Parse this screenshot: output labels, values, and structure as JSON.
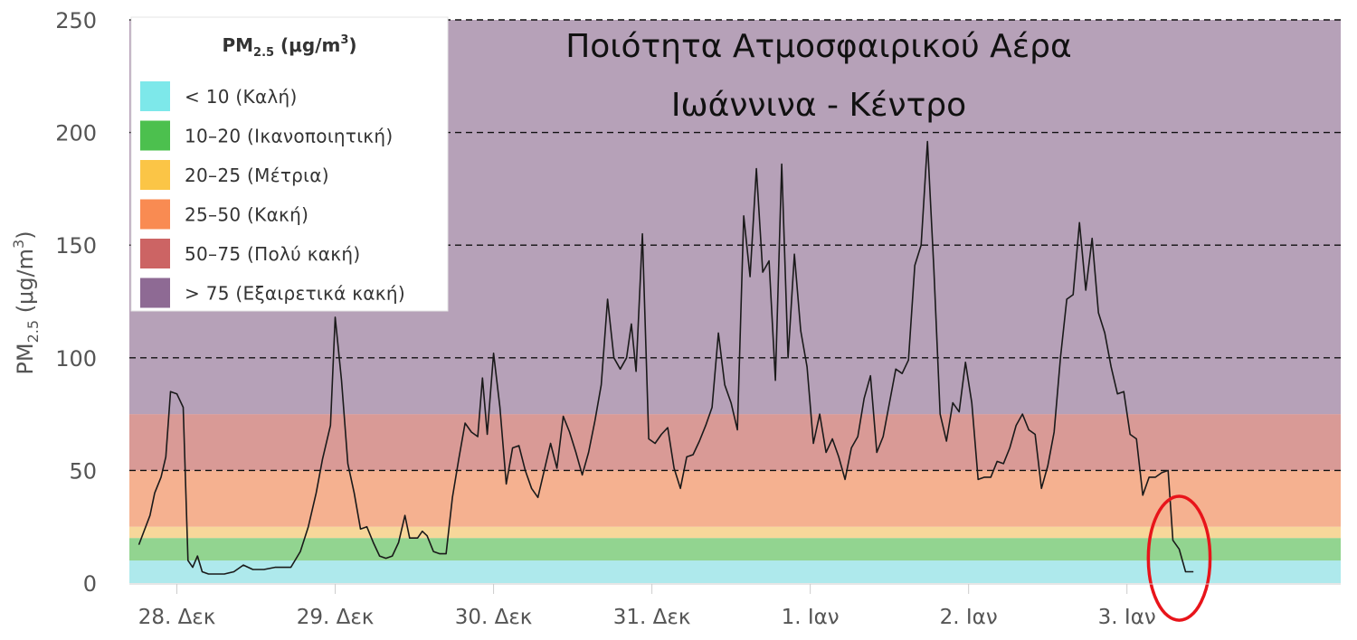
{
  "chart_data": {
    "type": "line",
    "title_lines": [
      "Ποιότητα Ατμοσφαιρικού Αέρα",
      "Ιωάννινα - Κέντρο"
    ],
    "ylabel_base": "PM",
    "ylabel_sub": "2.5",
    "ylabel_unit_open": " (μg/m",
    "ylabel_unit_sup": "3",
    "ylabel_unit_close": ")",
    "ylim": [
      0,
      250
    ],
    "yticks": [
      "0",
      "50",
      "100",
      "150",
      "200",
      "250"
    ],
    "ytick_values": [
      0,
      50,
      100,
      150,
      200,
      250
    ],
    "gridlines_at": [
      50,
      100,
      150,
      200,
      250
    ],
    "xlim": [
      -0.3,
      7.35
    ],
    "xticks": [
      {
        "label": "28. Δεκ",
        "x": 0
      },
      {
        "label": "29. Δεκ",
        "x": 1
      },
      {
        "label": "30. Δεκ",
        "x": 2
      },
      {
        "label": "31. Δεκ",
        "x": 3
      },
      {
        "label": "1. Ιαν",
        "x": 4
      },
      {
        "label": "2. Ιαν",
        "x": 5
      },
      {
        "label": "3. Ιαν",
        "x": 6
      }
    ],
    "bands": [
      {
        "from": 0,
        "to": 10,
        "color": "#aee9ec"
      },
      {
        "from": 10,
        "to": 20,
        "color": "#92d490"
      },
      {
        "from": 20,
        "to": 25,
        "color": "#f7d79a"
      },
      {
        "from": 25,
        "to": 50,
        "color": "#f5b190"
      },
      {
        "from": 50,
        "to": 75,
        "color": "#d99a96"
      },
      {
        "from": 75,
        "to": 250,
        "color": "#b6a1b8"
      }
    ],
    "legend": {
      "title_base": "PM",
      "title_sub": "2.5",
      "title_unit_open": " (μg/m",
      "title_unit_sup": "3",
      "title_unit_close": ")",
      "items": [
        {
          "label": "< 10 (Καλή)",
          "color": "#7de8ea"
        },
        {
          "label": "10–20 (Ικανοποιητική)",
          "color": "#4cc04e"
        },
        {
          "label": "20–25 (Μέτρια)",
          "color": "#fbc546"
        },
        {
          "label": "25–50 (Κακή)",
          "color": "#f98b52"
        },
        {
          "label": "50–75 (Πολύ κακή)",
          "color": "#cc6464"
        },
        {
          "label": "> 75 (Εξαιρετικά κακή)",
          "color": "#8e6a94"
        }
      ]
    },
    "series": [
      {
        "color": "#1a1a1a",
        "points": [
          [
            -0.24,
            17
          ],
          [
            -0.17,
            30
          ],
          [
            -0.14,
            40
          ],
          [
            -0.1,
            47
          ],
          [
            -0.07,
            56
          ],
          [
            -0.04,
            85
          ],
          [
            0.0,
            84
          ],
          [
            0.04,
            78
          ],
          [
            0.07,
            10
          ],
          [
            0.1,
            7
          ],
          [
            0.13,
            12
          ],
          [
            0.16,
            5
          ],
          [
            0.2,
            4
          ],
          [
            0.3,
            4
          ],
          [
            0.36,
            5
          ],
          [
            0.42,
            8
          ],
          [
            0.48,
            6
          ],
          [
            0.55,
            6
          ],
          [
            0.62,
            7
          ],
          [
            0.72,
            7
          ],
          [
            0.78,
            14
          ],
          [
            0.83,
            25
          ],
          [
            0.88,
            40
          ],
          [
            0.92,
            55
          ],
          [
            0.97,
            70
          ],
          [
            1.0,
            118
          ],
          [
            1.04,
            90
          ],
          [
            1.08,
            53
          ],
          [
            1.12,
            40
          ],
          [
            1.16,
            24
          ],
          [
            1.2,
            25
          ],
          [
            1.24,
            18
          ],
          [
            1.28,
            12
          ],
          [
            1.32,
            11
          ],
          [
            1.36,
            12
          ],
          [
            1.4,
            18
          ],
          [
            1.44,
            30
          ],
          [
            1.47,
            20
          ],
          [
            1.52,
            20
          ],
          [
            1.55,
            23
          ],
          [
            1.58,
            21
          ],
          [
            1.62,
            14
          ],
          [
            1.66,
            13
          ],
          [
            1.7,
            13
          ],
          [
            1.74,
            38
          ],
          [
            1.78,
            55
          ],
          [
            1.82,
            71
          ],
          [
            1.86,
            67
          ],
          [
            1.9,
            65
          ],
          [
            1.93,
            91
          ],
          [
            1.96,
            66
          ],
          [
            2.0,
            102
          ],
          [
            2.04,
            78
          ],
          [
            2.08,
            44
          ],
          [
            2.12,
            60
          ],
          [
            2.16,
            61
          ],
          [
            2.2,
            50
          ],
          [
            2.24,
            42
          ],
          [
            2.28,
            38
          ],
          [
            2.32,
            50
          ],
          [
            2.36,
            62
          ],
          [
            2.4,
            51
          ],
          [
            2.44,
            74
          ],
          [
            2.48,
            67
          ],
          [
            2.52,
            58
          ],
          [
            2.56,
            48
          ],
          [
            2.6,
            58
          ],
          [
            2.64,
            72
          ],
          [
            2.68,
            88
          ],
          [
            2.72,
            126
          ],
          [
            2.76,
            100
          ],
          [
            2.8,
            95
          ],
          [
            2.84,
            100
          ],
          [
            2.87,
            115
          ],
          [
            2.9,
            94
          ],
          [
            2.94,
            155
          ],
          [
            2.98,
            64
          ],
          [
            3.02,
            62
          ],
          [
            3.06,
            66
          ],
          [
            3.1,
            69
          ],
          [
            3.14,
            51
          ],
          [
            3.18,
            42
          ],
          [
            3.22,
            56
          ],
          [
            3.26,
            57
          ],
          [
            3.3,
            63
          ],
          [
            3.34,
            70
          ],
          [
            3.38,
            78
          ],
          [
            3.42,
            111
          ],
          [
            3.46,
            88
          ],
          [
            3.5,
            80
          ],
          [
            3.54,
            68
          ],
          [
            3.58,
            163
          ],
          [
            3.62,
            136
          ],
          [
            3.66,
            184
          ],
          [
            3.7,
            138
          ],
          [
            3.74,
            143
          ],
          [
            3.78,
            90
          ],
          [
            3.82,
            186
          ],
          [
            3.86,
            100
          ],
          [
            3.9,
            146
          ],
          [
            3.94,
            112
          ],
          [
            3.98,
            96
          ],
          [
            4.02,
            62
          ],
          [
            4.06,
            75
          ],
          [
            4.1,
            58
          ],
          [
            4.14,
            64
          ],
          [
            4.18,
            56
          ],
          [
            4.22,
            46
          ],
          [
            4.26,
            60
          ],
          [
            4.3,
            65
          ],
          [
            4.34,
            82
          ],
          [
            4.38,
            92
          ],
          [
            4.42,
            58
          ],
          [
            4.46,
            65
          ],
          [
            4.5,
            80
          ],
          [
            4.54,
            95
          ],
          [
            4.58,
            93
          ],
          [
            4.62,
            99
          ],
          [
            4.66,
            141
          ],
          [
            4.7,
            150
          ],
          [
            4.74,
            196
          ],
          [
            4.78,
            140
          ],
          [
            4.82,
            75
          ],
          [
            4.86,
            63
          ],
          [
            4.9,
            80
          ],
          [
            4.94,
            76
          ],
          [
            4.98,
            98
          ],
          [
            5.02,
            80
          ],
          [
            5.06,
            46
          ],
          [
            5.1,
            47
          ],
          [
            5.14,
            47
          ],
          [
            5.18,
            54
          ],
          [
            5.22,
            53
          ],
          [
            5.26,
            60
          ],
          [
            5.3,
            70
          ],
          [
            5.34,
            75
          ],
          [
            5.38,
            68
          ],
          [
            5.42,
            66
          ],
          [
            5.46,
            42
          ],
          [
            5.5,
            52
          ],
          [
            5.54,
            67
          ],
          [
            5.58,
            100
          ],
          [
            5.62,
            126
          ],
          [
            5.66,
            128
          ],
          [
            5.7,
            160
          ],
          [
            5.74,
            130
          ],
          [
            5.78,
            153
          ],
          [
            5.82,
            120
          ],
          [
            5.86,
            111
          ],
          [
            5.9,
            96
          ],
          [
            5.94,
            84
          ],
          [
            5.98,
            85
          ],
          [
            6.02,
            66
          ],
          [
            6.06,
            64
          ],
          [
            6.1,
            39
          ],
          [
            6.14,
            47
          ],
          [
            6.18,
            47
          ],
          [
            6.22,
            49
          ],
          [
            6.26,
            50
          ],
          [
            6.29,
            19
          ],
          [
            6.33,
            15
          ],
          [
            6.37,
            5
          ],
          [
            6.42,
            5
          ]
        ]
      }
    ],
    "annotations": [
      {
        "type": "ellipse",
        "cx": 6.33,
        "cy": 11,
        "rx": 0.195,
        "ry": 27.5,
        "color": "#e8141a"
      }
    ]
  }
}
